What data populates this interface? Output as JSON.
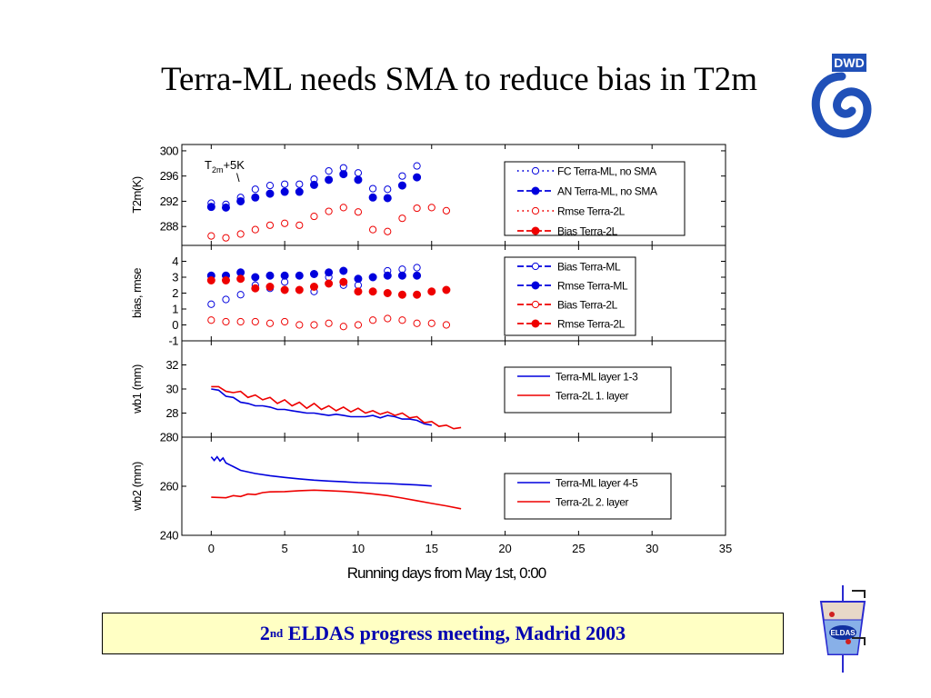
{
  "slide": {
    "title": "Terra-ML needs SMA to reduce bias in T2m",
    "footer_ordinal": "2",
    "footer_sup": "nd",
    "footer_text": " ELDAS progress meeting, Madrid 2003",
    "logo_dwd": "DWD",
    "logo_eldas": "ELDAS"
  },
  "colors": {
    "blue": "#0000dd",
    "red": "#ee0000",
    "footer_bg": "#ffffc4",
    "footer_text": "#0000b0"
  },
  "chart_data": [
    {
      "type": "scatter",
      "ylabel": "T2m(K)",
      "ylim": [
        285,
        301
      ],
      "yticks": [
        288,
        292,
        296,
        300
      ],
      "annotation_main": "T",
      "annotation_sub": "2m",
      "annotation_rest": "+5K",
      "annotation_mark": "\\",
      "legend_position": "top-right",
      "series": [
        {
          "name": "FC Terra-ML, no SMA",
          "style": "open",
          "color": "blue",
          "line": "dot",
          "x": [
            0,
            1,
            2,
            3,
            4,
            5,
            6,
            7,
            8,
            9,
            10,
            11,
            12,
            13,
            14
          ],
          "y": [
            291.7,
            291.5,
            292.6,
            293.9,
            294.5,
            294.7,
            294.7,
            295.5,
            296.8,
            297.3,
            296.5,
            294.0,
            293.9,
            296.0,
            297.6
          ]
        },
        {
          "name": "AN Terra-ML, no SMA",
          "style": "filled",
          "color": "blue",
          "line": "dash",
          "x": [
            0,
            1,
            2,
            3,
            4,
            5,
            6,
            7,
            8,
            9,
            10,
            11,
            12,
            13,
            14
          ],
          "y": [
            291.1,
            291.0,
            292.0,
            292.6,
            293.2,
            293.5,
            293.5,
            294.6,
            295.4,
            296.3,
            295.4,
            292.6,
            292.5,
            294.5,
            295.8
          ]
        },
        {
          "name": "Rmse Terra-2L",
          "style": "open",
          "color": "red",
          "line": "dot",
          "x": [
            0,
            1,
            2,
            3,
            4,
            5,
            6,
            7,
            8,
            9,
            10,
            11,
            12,
            13,
            14,
            15,
            16
          ],
          "y": [
            286.5,
            286.2,
            286.8,
            287.5,
            288.2,
            288.5,
            288.2,
            289.6,
            290.4,
            291.0,
            290.3,
            287.5,
            287.2,
            289.3,
            290.9,
            291.0,
            290.5
          ]
        },
        {
          "name": "Bias Terra-2L",
          "style": "filled",
          "color": "red",
          "line": "dash",
          "x": [],
          "y": []
        }
      ]
    },
    {
      "type": "scatter",
      "ylabel": "bias, rmse",
      "ylim": [
        -1,
        5
      ],
      "yticks": [
        -1,
        0,
        1,
        2,
        3,
        4
      ],
      "legend_position": "top-right",
      "series": [
        {
          "name": "Bias Terra-ML",
          "style": "open",
          "color": "blue",
          "line": "dash",
          "x": [
            0,
            1,
            2,
            3,
            4,
            5,
            6,
            7,
            8,
            9,
            10,
            11,
            12,
            13,
            14
          ],
          "y": [
            1.3,
            1.6,
            1.9,
            2.5,
            2.3,
            2.7,
            2.2,
            2.1,
            3.0,
            2.5,
            2.5,
            3.0,
            3.4,
            3.5,
            3.6
          ]
        },
        {
          "name": "Rmse Terra-ML",
          "style": "filled",
          "color": "blue",
          "line": "dash",
          "x": [
            0,
            1,
            2,
            3,
            4,
            5,
            6,
            7,
            8,
            9,
            10,
            11,
            12,
            13,
            14
          ],
          "y": [
            3.1,
            3.1,
            3.3,
            3.0,
            3.1,
            3.1,
            3.1,
            3.2,
            3.3,
            3.4,
            2.9,
            3.0,
            3.1,
            3.1,
            3.1
          ]
        },
        {
          "name": "Bias Terra-2L",
          "style": "open",
          "color": "red",
          "line": "dash",
          "x": [
            0,
            1,
            2,
            3,
            4,
            5,
            6,
            7,
            8,
            9,
            10,
            11,
            12,
            13,
            14,
            15,
            16
          ],
          "y": [
            0.3,
            0.2,
            0.2,
            0.2,
            0.1,
            0.2,
            0.0,
            0.0,
            0.1,
            -0.1,
            0.0,
            0.3,
            0.4,
            0.3,
            0.1,
            0.1,
            0.0
          ]
        },
        {
          "name": "Rmse Terra-2L",
          "style": "filled",
          "color": "red",
          "line": "dash",
          "x": [
            0,
            1,
            2,
            3,
            4,
            5,
            6,
            7,
            8,
            9,
            10,
            11,
            12,
            13,
            14,
            15,
            16
          ],
          "y": [
            2.8,
            2.8,
            2.9,
            2.3,
            2.4,
            2.2,
            2.2,
            2.4,
            2.6,
            2.7,
            2.1,
            2.1,
            2.0,
            1.9,
            1.9,
            2.1,
            2.2
          ]
        }
      ]
    },
    {
      "type": "line",
      "ylabel": "wb1 (mm)",
      "ylim": [
        26,
        34
      ],
      "yticks": [
        28,
        30,
        32
      ],
      "legend_position": "top-right",
      "series": [
        {
          "name": "Terra-ML layer 1-3",
          "color": "blue",
          "x": [
            0,
            0.5,
            1,
            1.5,
            2,
            2.5,
            3,
            3.5,
            4,
            4.5,
            5,
            5.5,
            6,
            6.5,
            7,
            7.5,
            8,
            8.5,
            9,
            9.5,
            10,
            10.5,
            11,
            11.5,
            12,
            12.5,
            13,
            13.5,
            14,
            14.5,
            15
          ],
          "y": [
            30.0,
            29.9,
            29.4,
            29.3,
            28.9,
            28.8,
            28.6,
            28.6,
            28.5,
            28.3,
            28.3,
            28.2,
            28.1,
            28.0,
            28.0,
            27.9,
            27.8,
            27.9,
            27.8,
            27.7,
            27.7,
            27.7,
            27.8,
            27.6,
            27.8,
            27.7,
            27.5,
            27.5,
            27.4,
            27.1,
            27.0
          ]
        },
        {
          "name": "Terra-2L 1. layer",
          "color": "red",
          "x": [
            0,
            0.5,
            1,
            1.5,
            2,
            2.5,
            3,
            3.5,
            4,
            4.5,
            5,
            5.5,
            6,
            6.5,
            7,
            7.5,
            8,
            8.5,
            9,
            9.5,
            10,
            10.5,
            11,
            11.5,
            12,
            12.5,
            13,
            13.5,
            14,
            14.5,
            15,
            15.5,
            16,
            16.5,
            17
          ],
          "y": [
            30.2,
            30.2,
            29.8,
            29.7,
            29.8,
            29.3,
            29.5,
            29.1,
            29.3,
            28.8,
            29.1,
            28.6,
            28.9,
            28.4,
            28.8,
            28.3,
            28.6,
            28.2,
            28.5,
            28.1,
            28.4,
            28.0,
            28.2,
            27.9,
            28.1,
            27.8,
            28.0,
            27.6,
            27.7,
            27.2,
            27.3,
            26.9,
            27.0,
            26.7,
            26.8
          ]
        }
      ]
    },
    {
      "type": "line",
      "ylabel": "wb2 (mm)",
      "xlabel": "Running days from May 1st, 0:00",
      "xlim": [
        -2,
        35
      ],
      "xticks": [
        0,
        5,
        10,
        15,
        20,
        25,
        30,
        35
      ],
      "ylim": [
        240,
        280
      ],
      "yticks": [
        240,
        260,
        280
      ],
      "legend_position": "top-right",
      "series": [
        {
          "name": "Terra-ML layer 4-5",
          "color": "blue",
          "x": [
            0,
            0.2,
            0.4,
            0.6,
            0.8,
            1.0,
            1.5,
            2,
            3,
            4,
            5,
            6,
            7,
            8,
            9,
            10,
            11,
            12,
            13,
            14,
            15
          ],
          "y": [
            272,
            270.5,
            272,
            270.3,
            271.5,
            269.5,
            268,
            266.5,
            265.2,
            264.3,
            263.6,
            263,
            262.5,
            262.1,
            261.8,
            261.5,
            261.3,
            261.1,
            260.8,
            260.5,
            260.1
          ]
        },
        {
          "name": "Terra-2L 2. layer",
          "color": "red",
          "x": [
            0,
            1,
            1.5,
            2,
            2.5,
            3,
            3.5,
            4,
            5,
            6,
            7,
            8,
            9,
            10,
            11,
            12,
            13,
            14,
            15,
            16,
            17
          ],
          "y": [
            255.5,
            255.3,
            256.2,
            255.8,
            256.8,
            256.6,
            257.4,
            257.7,
            257.8,
            258.2,
            258.4,
            258.2,
            257.9,
            257.5,
            256.9,
            256.2,
            255.2,
            254.1,
            253.0,
            252.0,
            250.8
          ]
        }
      ]
    }
  ]
}
